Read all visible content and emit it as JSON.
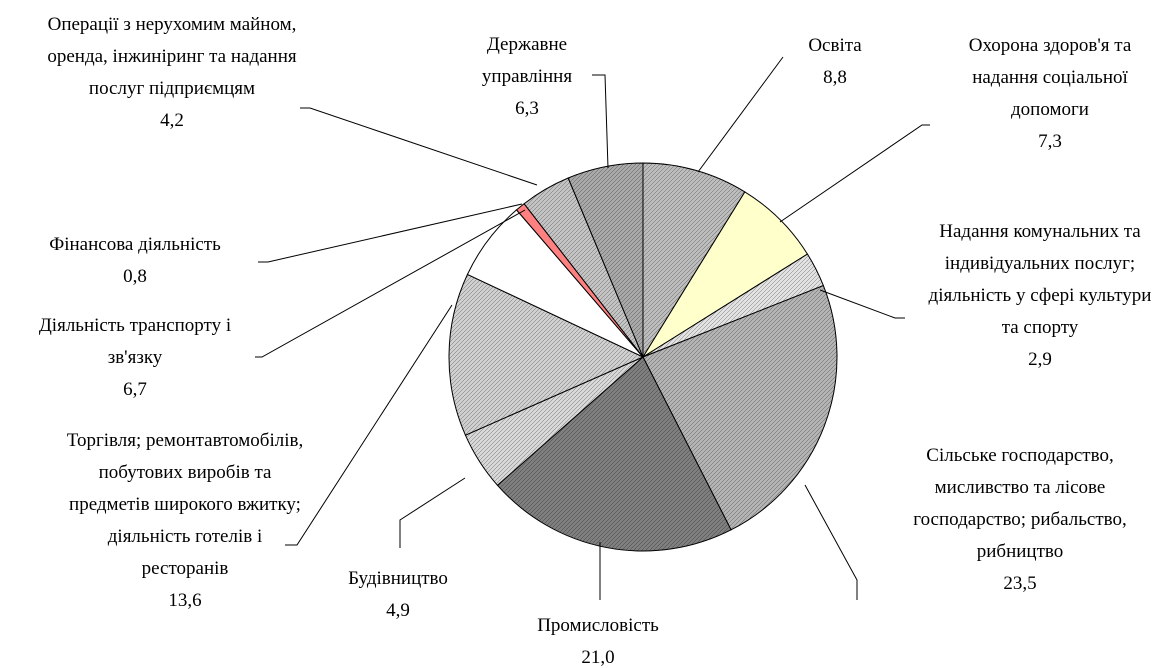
{
  "chart_data": {
    "type": "pie",
    "categories": [
      "Освіта",
      "Охорона здоров'я та надання соціальної допомоги",
      "Надання комунальних та індивідуальних послуг; діяльність у сфері культури та спорту",
      "Сільське господарство, мисливство та лісове господарство; рибальство, рибництво",
      "Промисловість",
      "Будівництво",
      "Торгівля; ремонтавтомобілів, побутових виробів та предметів широкого вжитку; діяльність готелів і ресторанів",
      "Діяльність транспорту і зв'язку",
      "Фінансова діяльність",
      "Операції з нерухомим майном, оренда, інжиніринг та надання послуг підприємцям",
      "Державне управління"
    ],
    "values": [
      8.8,
      7.3,
      2.9,
      23.5,
      21.0,
      4.9,
      13.6,
      6.7,
      0.8,
      4.2,
      6.3
    ],
    "value_labels": [
      "8,8",
      "7,3",
      "2,9",
      "23,5",
      "21,0",
      "4,9",
      "13,6",
      "6,7",
      "0,8",
      "4,2",
      "6,3"
    ],
    "colors": [
      "#bdbdbd",
      "#ffffcc",
      "#e2e2e2",
      "#b4b4b4",
      "#7f7f7f",
      "#d8d8d8",
      "#d0d0d0",
      "#ffffff",
      "#ff8080",
      "#c4c4c4",
      "#a9a9a9"
    ]
  }
}
